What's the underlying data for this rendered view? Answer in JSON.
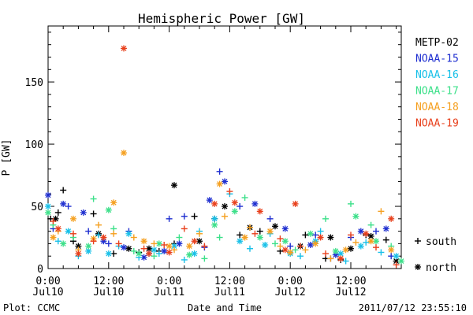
{
  "chart_data": {
    "type": "scatter",
    "title": "Hemispheric Power [GW]",
    "ylabel": "P [GW]",
    "xlabel": "Date and Time",
    "ylim": [
      0,
      195
    ],
    "xlim_hours": [
      0,
      70
    ],
    "yticks": [
      0,
      50,
      100,
      150
    ],
    "xticks": [
      {
        "hour": 0,
        "time": "0:00",
        "date": "Jul10"
      },
      {
        "hour": 12,
        "time": "12:00",
        "date": "Jul10"
      },
      {
        "hour": 24,
        "time": "0:00",
        "date": "Jul11"
      },
      {
        "hour": 36,
        "time": "12:00",
        "date": "Jul11"
      },
      {
        "hour": 48,
        "time": "0:00",
        "date": "Jul12"
      },
      {
        "hour": 60,
        "time": "12:00",
        "date": "Jul12"
      }
    ],
    "legend": [
      {
        "name": "METP-02",
        "color": "#000000"
      },
      {
        "name": "NOAA-15",
        "color": "#1f2fd0"
      },
      {
        "name": "NOAA-16",
        "color": "#18c0e8"
      },
      {
        "name": "NOAA-17",
        "color": "#3de08a"
      },
      {
        "name": "NOAA-18",
        "color": "#f5a020"
      },
      {
        "name": "NOAA-19",
        "color": "#e8401c"
      }
    ],
    "marker_key": [
      {
        "symbol": "+",
        "label": "south"
      },
      {
        "symbol": "*",
        "label": "north"
      }
    ],
    "series": [
      {
        "name": "METP-02",
        "south": [
          [
            0.5,
            40
          ],
          [
            2,
            45
          ],
          [
            3,
            63
          ],
          [
            5,
            22
          ],
          [
            9,
            44
          ],
          [
            13,
            12
          ],
          [
            18,
            13
          ],
          [
            22,
            14
          ],
          [
            25,
            20
          ],
          [
            29,
            42
          ],
          [
            33,
            40
          ],
          [
            38,
            27
          ],
          [
            42,
            30
          ],
          [
            46,
            14
          ],
          [
            51,
            27
          ],
          [
            55,
            8
          ],
          [
            58,
            7
          ],
          [
            63,
            27
          ],
          [
            67,
            23
          ]
        ],
        "north": [
          [
            1.5,
            40
          ],
          [
            6,
            18
          ],
          [
            10,
            28
          ],
          [
            16,
            16
          ],
          [
            20,
            16
          ],
          [
            25,
            67
          ],
          [
            30,
            22
          ],
          [
            35,
            50
          ],
          [
            40,
            33
          ],
          [
            45,
            34
          ],
          [
            50,
            18
          ],
          [
            56,
            25
          ],
          [
            60,
            16
          ],
          [
            64,
            26
          ],
          [
            69,
            6
          ]
        ]
      },
      {
        "name": "NOAA-15",
        "south": [
          [
            1,
            32
          ],
          [
            4,
            50
          ],
          [
            8,
            30
          ],
          [
            12,
            20
          ],
          [
            16,
            30
          ],
          [
            20,
            12
          ],
          [
            24,
            40
          ],
          [
            27,
            42
          ],
          [
            31,
            17
          ],
          [
            34,
            78
          ],
          [
            38,
            50
          ],
          [
            44,
            40
          ],
          [
            48,
            18
          ],
          [
            53,
            27
          ],
          [
            56,
            8
          ],
          [
            60,
            25
          ],
          [
            65,
            30
          ],
          [
            68,
            10
          ]
        ],
        "north": [
          [
            0,
            59
          ],
          [
            3,
            52
          ],
          [
            7,
            45
          ],
          [
            11,
            22
          ],
          [
            15,
            17
          ],
          [
            19,
            9
          ],
          [
            23,
            14
          ],
          [
            26,
            20
          ],
          [
            32,
            55
          ],
          [
            35,
            70
          ],
          [
            41,
            52
          ],
          [
            47,
            32
          ],
          [
            52,
            19
          ],
          [
            57,
            11
          ],
          [
            62,
            30
          ],
          [
            67,
            32
          ]
        ]
      },
      {
        "name": "NOAA-16",
        "south": [
          [
            2,
            22
          ],
          [
            6,
            10
          ],
          [
            10,
            27
          ],
          [
            14,
            18
          ],
          [
            18,
            9
          ],
          [
            22,
            12
          ],
          [
            27,
            7
          ],
          [
            30,
            30
          ],
          [
            36,
            60
          ],
          [
            40,
            16
          ],
          [
            44,
            28
          ],
          [
            50,
            10
          ],
          [
            54,
            30
          ],
          [
            59,
            6
          ],
          [
            63,
            21
          ],
          [
            66,
            13
          ]
        ],
        "north": [
          [
            0,
            50
          ],
          [
            4,
            30
          ],
          [
            8,
            14
          ],
          [
            12,
            12
          ],
          [
            16,
            28
          ],
          [
            21,
            15
          ],
          [
            25,
            18
          ],
          [
            29,
            12
          ],
          [
            33,
            40
          ],
          [
            38,
            22
          ],
          [
            43,
            19
          ],
          [
            48,
            12
          ],
          [
            53,
            22
          ],
          [
            58,
            12
          ],
          [
            62,
            18
          ],
          [
            69,
            10
          ]
        ]
      },
      {
        "name": "NOAA-17",
        "south": [
          [
            1,
            35
          ],
          [
            5,
            25
          ],
          [
            9,
            56
          ],
          [
            13,
            32
          ],
          [
            17,
            14
          ],
          [
            21,
            10
          ],
          [
            26,
            25
          ],
          [
            31,
            8
          ],
          [
            34,
            25
          ],
          [
            39,
            57
          ],
          [
            45,
            20
          ],
          [
            49,
            15
          ],
          [
            55,
            40
          ],
          [
            60,
            52
          ],
          [
            64,
            35
          ],
          [
            68,
            18
          ]
        ],
        "north": [
          [
            0,
            45
          ],
          [
            3,
            20
          ],
          [
            8,
            18
          ],
          [
            12,
            47
          ],
          [
            18,
            12
          ],
          [
            22,
            20
          ],
          [
            28,
            11
          ],
          [
            33,
            35
          ],
          [
            37,
            46
          ],
          [
            42,
            25
          ],
          [
            47,
            22
          ],
          [
            52,
            28
          ],
          [
            57,
            14
          ],
          [
            61,
            42
          ],
          [
            65,
            22
          ],
          [
            70,
            6
          ]
        ]
      },
      {
        "name": "NOAA-18",
        "south": [
          [
            2,
            30
          ],
          [
            6,
            15
          ],
          [
            10,
            35
          ],
          [
            13,
            28
          ],
          [
            17,
            25
          ],
          [
            21,
            20
          ],
          [
            25,
            15
          ],
          [
            30,
            28
          ],
          [
            35,
            42
          ],
          [
            40,
            33
          ],
          [
            46,
            18
          ],
          [
            51,
            15
          ],
          [
            56,
            8
          ],
          [
            61,
            21
          ],
          [
            66,
            46
          ]
        ],
        "north": [
          [
            1,
            25
          ],
          [
            5,
            40
          ],
          [
            9,
            24
          ],
          [
            13,
            53
          ],
          [
            15,
            93
          ],
          [
            19,
            22
          ],
          [
            24,
            18
          ],
          [
            28,
            18
          ],
          [
            34,
            68
          ],
          [
            39,
            25
          ],
          [
            44,
            30
          ],
          [
            48,
            13
          ],
          [
            53,
            20
          ],
          [
            59,
            15
          ],
          [
            64,
            22
          ],
          [
            68,
            15
          ]
        ]
      },
      {
        "name": "NOAA-19",
        "south": [
          [
            1,
            38
          ],
          [
            5,
            28
          ],
          [
            9,
            22
          ],
          [
            14,
            20
          ],
          [
            19,
            16
          ],
          [
            23,
            19
          ],
          [
            27,
            32
          ],
          [
            31,
            18
          ],
          [
            36,
            62
          ],
          [
            41,
            28
          ],
          [
            46,
            24
          ],
          [
            50,
            18
          ],
          [
            55,
            12
          ],
          [
            60,
            27
          ],
          [
            65,
            17
          ],
          [
            69,
            3
          ]
        ],
        "north": [
          [
            2,
            32
          ],
          [
            6,
            12
          ],
          [
            11,
            25
          ],
          [
            15,
            177
          ],
          [
            20,
            12
          ],
          [
            24,
            13
          ],
          [
            29,
            22
          ],
          [
            33,
            52
          ],
          [
            37,
            53
          ],
          [
            42,
            46
          ],
          [
            47,
            15
          ],
          [
            49,
            52
          ],
          [
            54,
            25
          ],
          [
            58,
            8
          ],
          [
            63,
            28
          ],
          [
            68,
            40
          ]
        ]
      }
    ]
  },
  "footer": {
    "plot_credit": "Plot: CCMC",
    "xlabel": "Date and Time",
    "timestamp": "2011/07/12 23:55:10"
  }
}
